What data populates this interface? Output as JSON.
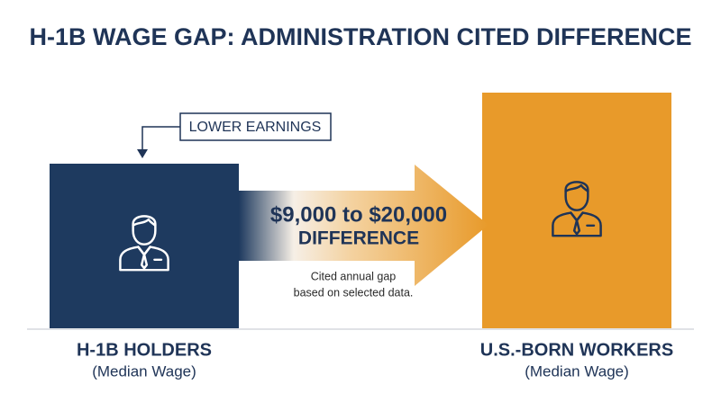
{
  "title": "H-1B WAGE GAP: ADMINISTRATION CITED DIFFERENCE",
  "callout": "LOWER EARNINGS",
  "left": {
    "label": "H-1B HOLDERS",
    "sublabel": "(Median Wage)"
  },
  "right": {
    "label": "U.S.-BORN WORKERS",
    "sublabel": "(Median Wage)"
  },
  "arrow": {
    "amount": "$9,000 to $20,000",
    "caption": "DIFFERENCE",
    "note": [
      "Cited annual gap",
      "based on selected data."
    ]
  }
}
